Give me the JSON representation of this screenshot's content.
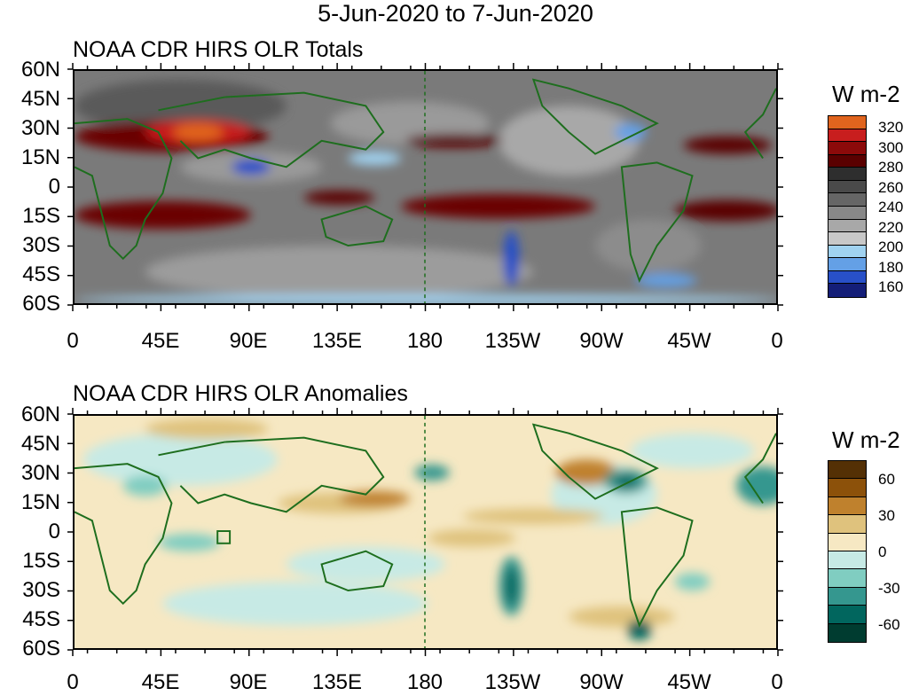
{
  "title": "5-Jun-2020 to 7-Jun-2020",
  "panels": [
    {
      "title": "NOAA CDR HIRS OLR Totals",
      "units": "W m-2",
      "colorbar_labels": [
        "320",
        "300",
        "280",
        "260",
        "240",
        "220",
        "200",
        "180",
        "160"
      ],
      "colorbar_colors": [
        "#e0641e",
        "#c81e1e",
        "#8c0a0a",
        "#5a0000",
        "#2e2e2e",
        "#4a4a4a",
        "#666666",
        "#888888",
        "#a8a8a8",
        "#c8c8c8",
        "#a0d2f0",
        "#64a0e6",
        "#2850c8",
        "#141e78"
      ]
    },
    {
      "title": "NOAA CDR HIRS OLR Anomalies",
      "units": "W m-2",
      "colorbar_labels": [
        "60",
        "30",
        "0",
        "-30",
        "-60"
      ],
      "colorbar_colors": [
        "#543005",
        "#8c510a",
        "#bf812d",
        "#dfc27d",
        "#f6e8c3",
        "#c7eae5",
        "#80cdc1",
        "#35978f",
        "#01665e",
        "#003c30"
      ]
    }
  ],
  "axes": {
    "lat_labels": [
      "60N",
      "45N",
      "30N",
      "15N",
      "0",
      "15S",
      "30S",
      "45S",
      "60S"
    ],
    "lon_labels": [
      "0",
      "45E",
      "90E",
      "135E",
      "180",
      "135W",
      "90W",
      "45W",
      "0"
    ]
  },
  "colors": {
    "coast": "#1e6e1e",
    "anom_base": "#f6e8c3",
    "totals_base": "#7a7a7a"
  }
}
